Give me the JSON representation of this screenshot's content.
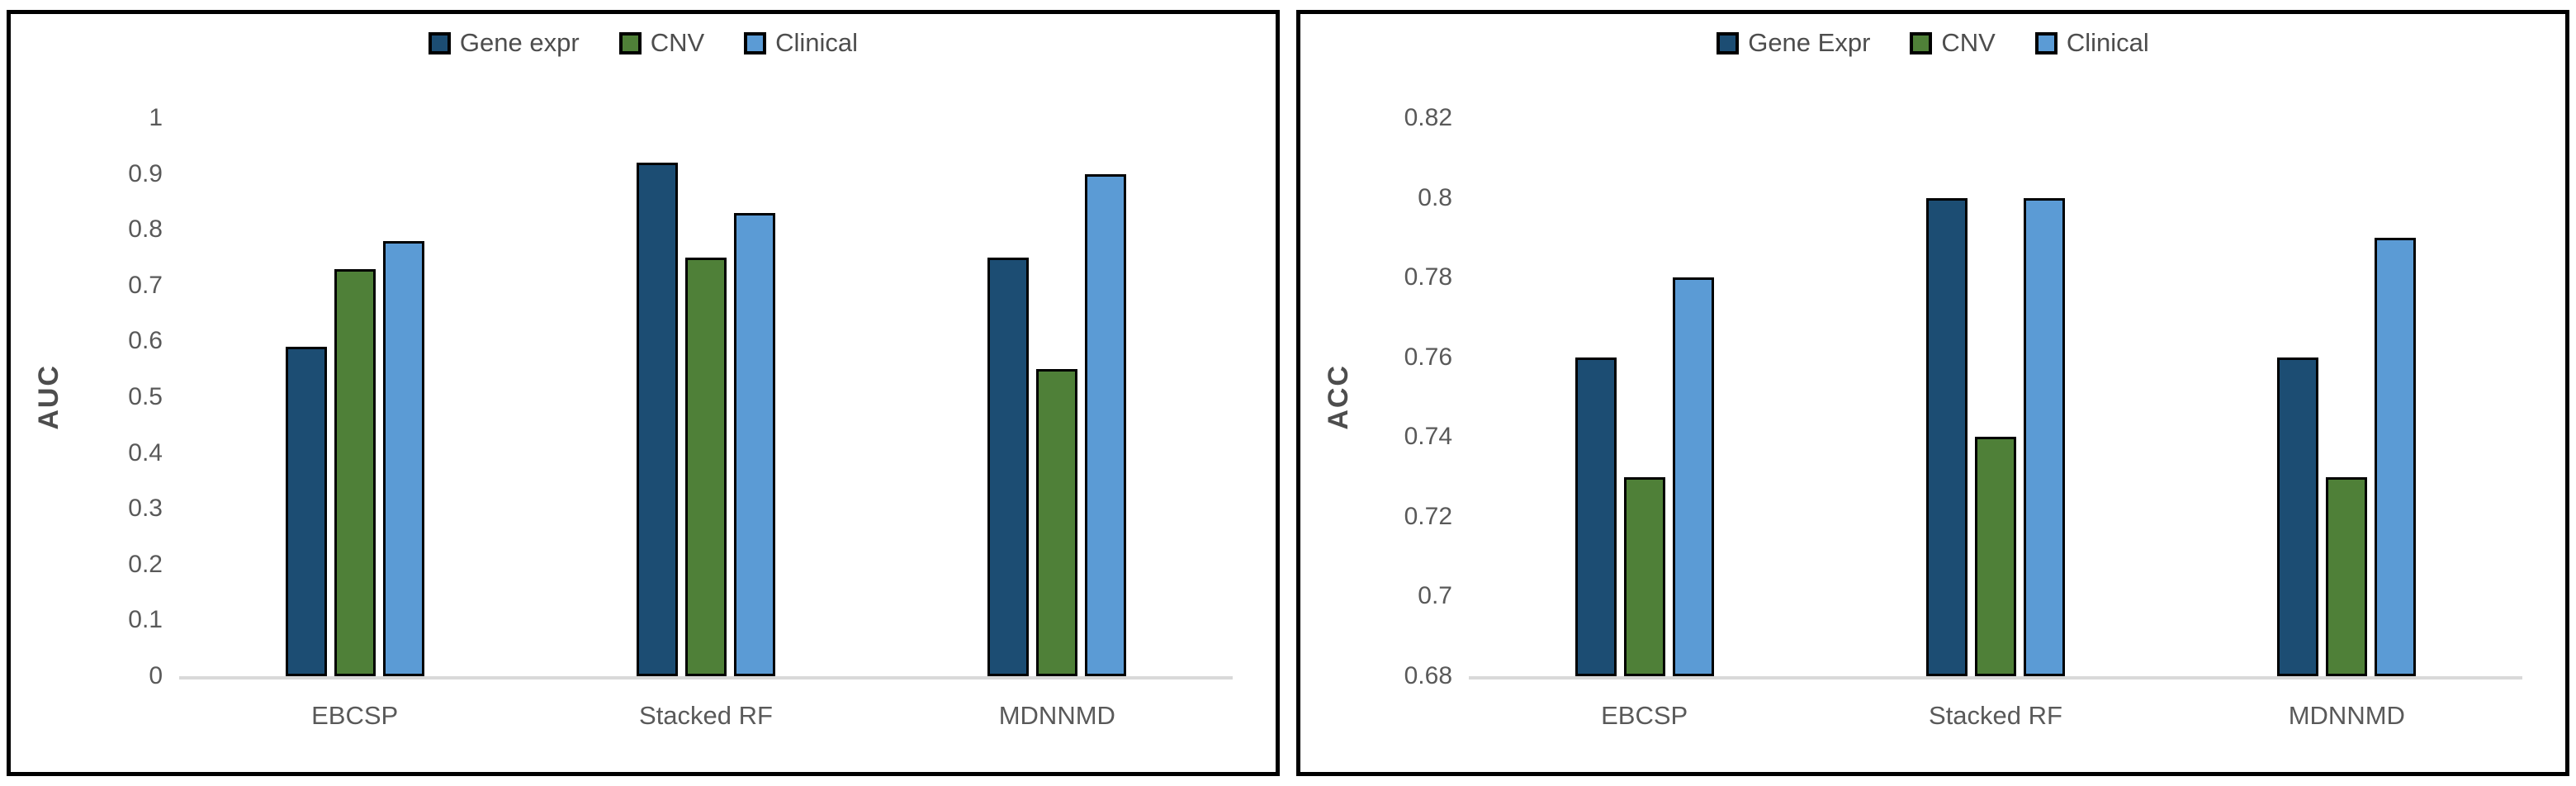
{
  "colors": {
    "background": "#ffffff",
    "panel_border": "#000000",
    "bar_outline": "#000000",
    "axis_line": "#d9d9d9",
    "tick_text": "#595959",
    "label_text": "#4d4d4d"
  },
  "chart_data": [
    {
      "type": "bar",
      "title": "",
      "ylabel": "AUC",
      "xlabel": "",
      "legend_position": "top",
      "grid": false,
      "categories": [
        "EBCSP",
        "Stacked RF",
        "MDNNMD"
      ],
      "series": [
        {
          "name": "Gene expr",
          "color": "#1c4d73",
          "values": [
            0.59,
            0.92,
            0.75
          ]
        },
        {
          "name": "CNV",
          "color": "#4f8038",
          "values": [
            0.73,
            0.75,
            0.55
          ]
        },
        {
          "name": "Clinical",
          "color": "#5b9bd5",
          "values": [
            0.78,
            0.83,
            0.9
          ]
        }
      ],
      "ylim": [
        0,
        1
      ],
      "yticks": [
        {
          "value": 0,
          "label": "0"
        },
        {
          "value": 0.1,
          "label": "0.1"
        },
        {
          "value": 0.2,
          "label": "0.2"
        },
        {
          "value": 0.3,
          "label": "0.3"
        },
        {
          "value": 0.4,
          "label": "0.4"
        },
        {
          "value": 0.5,
          "label": "0.5"
        },
        {
          "value": 0.6,
          "label": "0.6"
        },
        {
          "value": 0.7,
          "label": "0.7"
        },
        {
          "value": 0.8,
          "label": "0.8"
        },
        {
          "value": 0.9,
          "label": "0.9"
        },
        {
          "value": 1,
          "label": "1"
        }
      ]
    },
    {
      "type": "bar",
      "title": "",
      "ylabel": "ACC",
      "xlabel": "",
      "legend_position": "top",
      "grid": false,
      "categories": [
        "EBCSP",
        "Stacked RF",
        "MDNNMD"
      ],
      "series": [
        {
          "name": "Gene Expr",
          "color": "#1c4d73",
          "values": [
            0.76,
            0.8,
            0.76
          ]
        },
        {
          "name": "CNV",
          "color": "#4f8038",
          "values": [
            0.73,
            0.74,
            0.73
          ]
        },
        {
          "name": "Clinical",
          "color": "#5b9bd5",
          "values": [
            0.78,
            0.8,
            0.79
          ]
        }
      ],
      "ylim": [
        0.68,
        0.82
      ],
      "yticks": [
        {
          "value": 0.68,
          "label": "0.68"
        },
        {
          "value": 0.7,
          "label": "0.7"
        },
        {
          "value": 0.72,
          "label": "0.72"
        },
        {
          "value": 0.74,
          "label": "0.74"
        },
        {
          "value": 0.76,
          "label": "0.76"
        },
        {
          "value": 0.78,
          "label": "0.78"
        },
        {
          "value": 0.8,
          "label": "0.8"
        },
        {
          "value": 0.82,
          "label": "0.82"
        }
      ]
    }
  ]
}
